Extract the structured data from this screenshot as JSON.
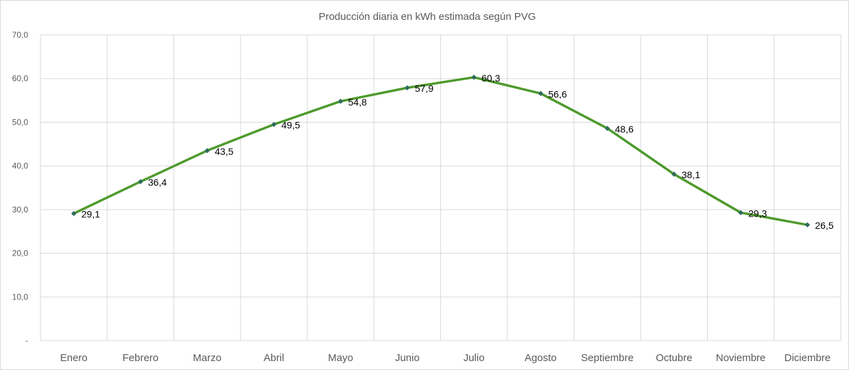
{
  "chart_data": {
    "type": "line",
    "title": "Producción diaria en kWh estimada según PVG",
    "categories": [
      "Enero",
      "Febrero",
      "Marzo",
      "Abril",
      "Mayo",
      "Junio",
      "Julio",
      "Agosto",
      "Septiembre",
      "Octubre",
      "Noviembre",
      "Diciembre"
    ],
    "values": [
      29.1,
      36.4,
      43.5,
      49.5,
      54.8,
      57.9,
      60.3,
      56.6,
      48.6,
      38.1,
      29.3,
      26.5
    ],
    "data_labels": [
      "29,1",
      "36,4",
      "43,5",
      "49,5",
      "54,8",
      "57,9",
      "60,3",
      "56,6",
      "48,6",
      "38,1",
      "29,3",
      "26,5"
    ],
    "ylim": [
      0,
      70
    ],
    "y_ticks": [
      0,
      10,
      20,
      30,
      40,
      50,
      60,
      70
    ],
    "y_tick_labels": [
      "-",
      "10,0",
      "20,0",
      "30,0",
      "40,0",
      "50,0",
      "60,0",
      "70,0"
    ],
    "xlabel": "",
    "ylabel": "",
    "grid": true,
    "legend": "none",
    "line_color": "#4e9a2d",
    "marker_color": "#2e6b5e",
    "gridline_color": "#d9d9d9"
  }
}
